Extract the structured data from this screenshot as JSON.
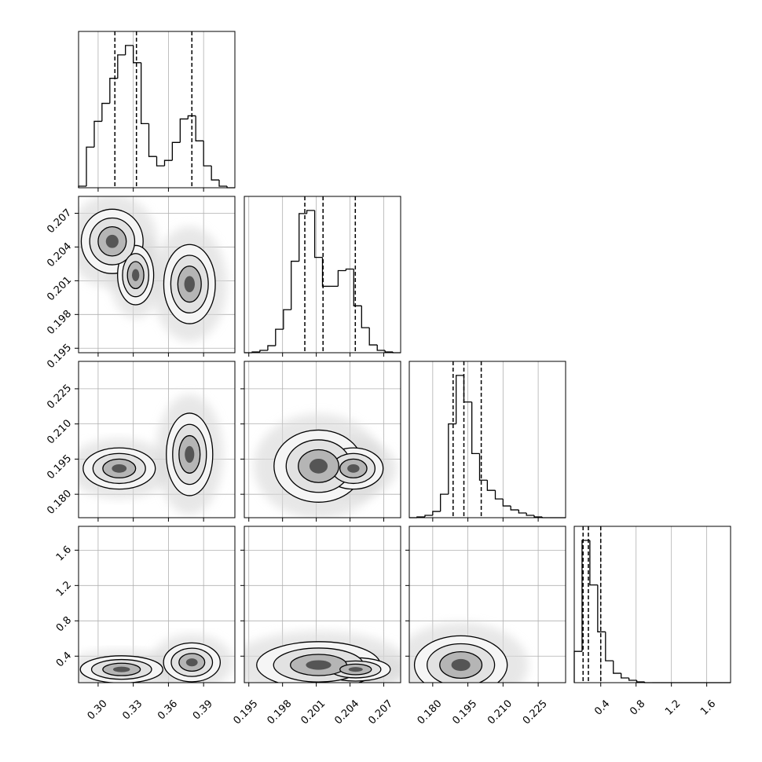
{
  "chart_data": {
    "type": "corner",
    "grid": true,
    "params": [
      {
        "lim": [
          0.2833,
          0.4167
        ],
        "ticks": [
          {
            "value": 0.3,
            "label": "0.30"
          },
          0.33,
          0.36,
          0.39
        ],
        "bins": [
          0.2833,
          0.29,
          0.2967,
          0.3033,
          0.31,
          0.3167,
          0.3233,
          0.33,
          0.3367,
          0.3433,
          0.35,
          0.3567,
          0.3633,
          0.37,
          0.3767,
          0.3833,
          0.39,
          0.3967,
          0.4033,
          0.41,
          0.4167
        ],
        "counts": [
          2,
          52,
          85,
          108,
          140,
          170,
          182,
          160,
          82,
          40,
          28,
          35,
          58,
          88,
          92,
          60,
          28,
          10,
          2,
          0
        ],
        "hist_ylim": [
          0,
          200
        ],
        "quantiles": [
          0.3143,
          0.3327,
          0.38
        ]
      },
      {
        "lim": [
          0.1946,
          0.2085
        ],
        "ticks": [
          0.195,
          0.198,
          0.201,
          0.204,
          0.207
        ],
        "bins": [
          0.1946,
          0.1953,
          0.19599,
          0.19669,
          0.19738,
          0.19808,
          0.19877,
          0.19947,
          0.20016,
          0.20086,
          0.20155,
          0.20225,
          0.20294,
          0.20364,
          0.20433,
          0.20503,
          0.20572,
          0.20642,
          0.20711,
          0.20781,
          0.2085
        ],
        "counts": [
          0,
          1,
          3,
          9,
          30,
          55,
          117,
          178,
          182,
          122,
          85,
          85,
          105,
          107,
          60,
          32,
          10,
          3,
          1,
          0
        ],
        "hist_ylim": [
          0,
          200
        ],
        "quantiles": [
          0.19998,
          0.2016,
          0.20447
        ]
      },
      {
        "lim": [
          0.17,
          0.2367
        ],
        "ticks": [
          {
            "value": 0.18,
            "label": "0.180"
          },
          0.195,
          {
            "value": 0.21,
            "label": "0.210"
          },
          0.225
        ],
        "bins": [
          0.17,
          0.1733,
          0.1767,
          0.18,
          0.1833,
          0.1867,
          0.19,
          0.1933,
          0.1967,
          0.2,
          0.2033,
          0.2067,
          0.21,
          0.2133,
          0.2167,
          0.22,
          0.2233,
          0.2267,
          0.23,
          0.2333,
          0.2367
        ],
        "counts": [
          0,
          1,
          3,
          8,
          30,
          120,
          182,
          148,
          82,
          48,
          35,
          24,
          15,
          10,
          6,
          3,
          1,
          0,
          0,
          0
        ],
        "hist_ylim": [
          0,
          200
        ],
        "quantiles": [
          0.1887,
          0.1933,
          0.2007
        ]
      },
      {
        "lim": [
          0.1,
          1.87
        ],
        "ticks": [
          0.4,
          0.8,
          1.2,
          1.6
        ],
        "bins": [
          0.1,
          0.1885,
          0.277,
          0.3655,
          0.454,
          0.5425,
          0.631,
          0.7195,
          0.808,
          0.8965,
          0.985,
          1.0735,
          1.162,
          1.2505,
          1.339,
          1.4275,
          1.516,
          1.6045,
          1.693,
          1.7815,
          1.87
        ],
        "counts": [
          40,
          182,
          125,
          65,
          28,
          12,
          6,
          3,
          1,
          0,
          0,
          0,
          0,
          0,
          0,
          0,
          0,
          0,
          0,
          0
        ],
        "hist_ylim": [
          0,
          200
        ],
        "quantiles": [
          0.2,
          0.26,
          0.4
        ]
      }
    ],
    "pairs": [
      {
        "x_param": 0,
        "y_param": 1,
        "components": [
          {
            "x": 0.312,
            "y": 0.2045,
            "sx": 0.012,
            "sy": 0.0013
          },
          {
            "x": 0.332,
            "y": 0.2015,
            "sx": 0.007,
            "sy": 0.0012
          },
          {
            "x": 0.378,
            "y": 0.2007,
            "sx": 0.01,
            "sy": 0.0016
          }
        ]
      },
      {
        "x_param": 0,
        "y_param": 2,
        "components": [
          {
            "x": 0.318,
            "y": 0.191,
            "sx": 0.014,
            "sy": 0.004
          },
          {
            "x": 0.378,
            "y": 0.197,
            "sx": 0.009,
            "sy": 0.008
          }
        ]
      },
      {
        "x_param": 1,
        "y_param": 2,
        "components": [
          {
            "x": 0.2012,
            "y": 0.192,
            "sx": 0.0018,
            "sy": 0.007
          },
          {
            "x": 0.2043,
            "y": 0.191,
            "sx": 0.0012,
            "sy": 0.004
          }
        ]
      },
      {
        "x_param": 0,
        "y_param": 3,
        "components": [
          {
            "x": 0.32,
            "y": 0.25,
            "sx": 0.016,
            "sy": 0.07
          },
          {
            "x": 0.38,
            "y": 0.33,
            "sx": 0.011,
            "sy": 0.1
          }
        ]
      },
      {
        "x_param": 1,
        "y_param": 3,
        "components": [
          {
            "x": 0.2012,
            "y": 0.3,
            "sx": 0.0025,
            "sy": 0.12
          },
          {
            "x": 0.2045,
            "y": 0.25,
            "sx": 0.0014,
            "sy": 0.06
          }
        ]
      },
      {
        "x_param": 2,
        "y_param": 3,
        "components": [
          {
            "x": 0.192,
            "y": 0.3,
            "sx": 0.009,
            "sy": 0.15
          }
        ]
      }
    ]
  }
}
